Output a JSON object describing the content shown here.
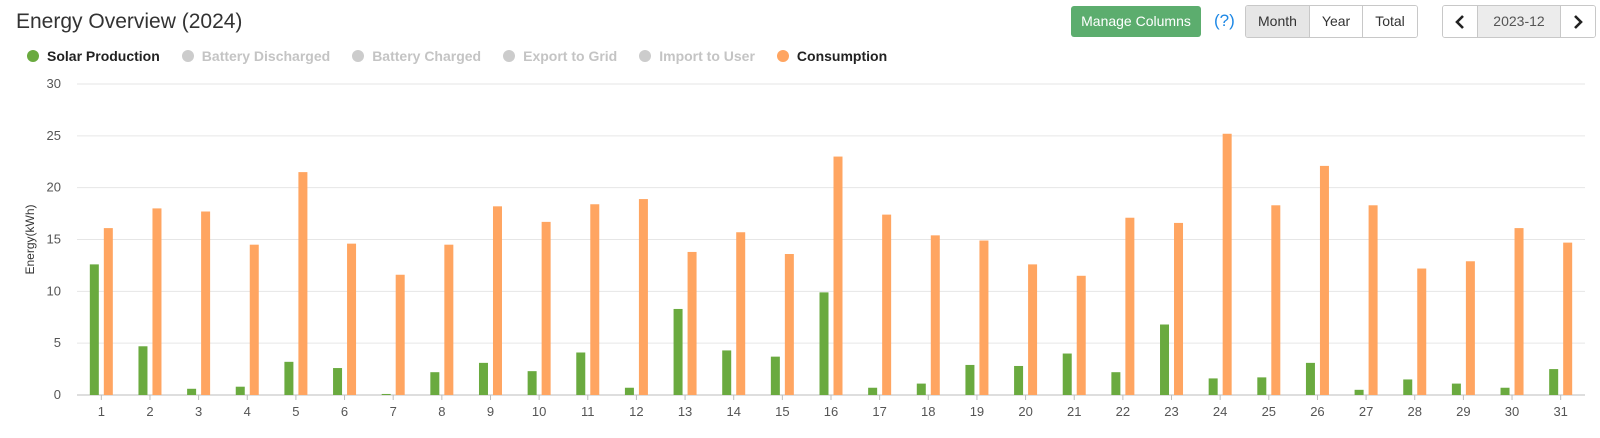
{
  "title": "Energy Overview (2024)",
  "toolbar": {
    "manage_columns": "Manage Columns",
    "help": "(?)",
    "periods": [
      {
        "label": "Month",
        "active": true
      },
      {
        "label": "Year",
        "active": false
      },
      {
        "label": "Total",
        "active": false
      }
    ],
    "date": "2023-12",
    "prev_icon": "chevron-left-icon",
    "next_icon": "chevron-right-icon"
  },
  "legend": [
    {
      "label": "Solar Production",
      "color": "#6aaa3f",
      "active": true
    },
    {
      "label": "Battery Discharged",
      "color": "#cccccc",
      "active": false
    },
    {
      "label": "Battery Charged",
      "color": "#cccccc",
      "active": false
    },
    {
      "label": "Export to Grid",
      "color": "#cccccc",
      "active": false
    },
    {
      "label": "Import to User",
      "color": "#cccccc",
      "active": false
    },
    {
      "label": "Consumption",
      "color": "#ffa561",
      "active": true
    }
  ],
  "chart_data": {
    "type": "bar",
    "ylabel": "Energy(kWh)",
    "xlabel": "",
    "ylim": [
      0,
      30
    ],
    "yticks": [
      0,
      5,
      10,
      15,
      20,
      25,
      30
    ],
    "grid": true,
    "categories": [
      "1",
      "2",
      "3",
      "4",
      "5",
      "6",
      "7",
      "8",
      "9",
      "10",
      "11",
      "12",
      "13",
      "14",
      "15",
      "16",
      "17",
      "18",
      "19",
      "20",
      "21",
      "22",
      "23",
      "24",
      "25",
      "26",
      "27",
      "28",
      "29",
      "30",
      "31"
    ],
    "series": [
      {
        "name": "Solar Production",
        "color": "#6aaa3f",
        "values": [
          12.6,
          4.7,
          0.6,
          0.8,
          3.2,
          2.6,
          0.1,
          2.2,
          3.1,
          2.3,
          4.1,
          0.7,
          8.3,
          4.3,
          3.7,
          9.9,
          0.7,
          1.1,
          2.9,
          2.8,
          4.0,
          2.2,
          6.8,
          1.6,
          1.7,
          3.1,
          0.5,
          1.5,
          1.1,
          0.7,
          2.5
        ]
      },
      {
        "name": "Consumption",
        "color": "#ffa561",
        "values": [
          16.1,
          18.0,
          17.7,
          14.5,
          21.5,
          14.6,
          11.6,
          14.5,
          18.2,
          16.7,
          18.4,
          18.9,
          13.8,
          15.7,
          13.6,
          23.0,
          17.4,
          15.4,
          14.9,
          12.6,
          11.5,
          17.1,
          16.6,
          25.2,
          18.3,
          22.1,
          18.3,
          12.2,
          12.9,
          16.1,
          14.7
        ]
      }
    ]
  }
}
